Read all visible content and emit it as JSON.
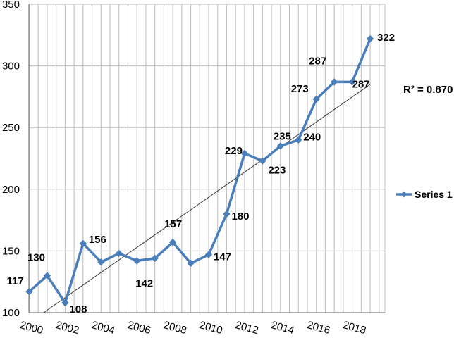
{
  "chart_data": {
    "type": "line",
    "x": [
      2000,
      2001,
      2002,
      2003,
      2004,
      2005,
      2006,
      2007,
      2008,
      2009,
      2010,
      2011,
      2012,
      2013,
      2014,
      2015,
      2016,
      2017,
      2018,
      2019
    ],
    "x_tick_labels": [
      "2000",
      "2002",
      "2004",
      "2006",
      "2008",
      "2010",
      "2012",
      "2014",
      "2016",
      "2018"
    ],
    "ylim": [
      100,
      350
    ],
    "y_ticks": [
      100,
      150,
      200,
      250,
      300,
      350
    ],
    "y_tick_labels": [
      "100",
      "150",
      "200",
      "250",
      "300",
      "350"
    ],
    "series": [
      {
        "name": "Series 1",
        "color": "#4a7ebb",
        "values": [
          117,
          130,
          108,
          156,
          141,
          148,
          142,
          144,
          157,
          140,
          147,
          180,
          229,
          223,
          235,
          240,
          273,
          287,
          287,
          322
        ]
      }
    ],
    "data_labels": [
      {
        "index": 0,
        "text": "117"
      },
      {
        "index": 1,
        "text": "130"
      },
      {
        "index": 2,
        "text": "108"
      },
      {
        "index": 3,
        "text": "156"
      },
      {
        "index": 6,
        "text": "142"
      },
      {
        "index": 8,
        "text": "157"
      },
      {
        "index": 10,
        "text": "147"
      },
      {
        "index": 11,
        "text": "180"
      },
      {
        "index": 12,
        "text": "229"
      },
      {
        "index": 13,
        "text": "223"
      },
      {
        "index": 14,
        "text": "235"
      },
      {
        "index": 15,
        "text": "240"
      },
      {
        "index": 16,
        "text": "273"
      },
      {
        "index": 17,
        "text": "287"
      },
      {
        "index": 18,
        "text": "287"
      },
      {
        "index": 19,
        "text": "322"
      }
    ],
    "trendline": {
      "type": "linear",
      "start": [
        2000.8,
        100
      ],
      "end": [
        2019,
        285
      ],
      "color": "#333333",
      "r2_text": "R² = 0.870"
    },
    "grid": true,
    "legend": {
      "position": "right",
      "entries": [
        "Series 1"
      ]
    },
    "title": "",
    "xlabel": "",
    "ylabel": ""
  }
}
